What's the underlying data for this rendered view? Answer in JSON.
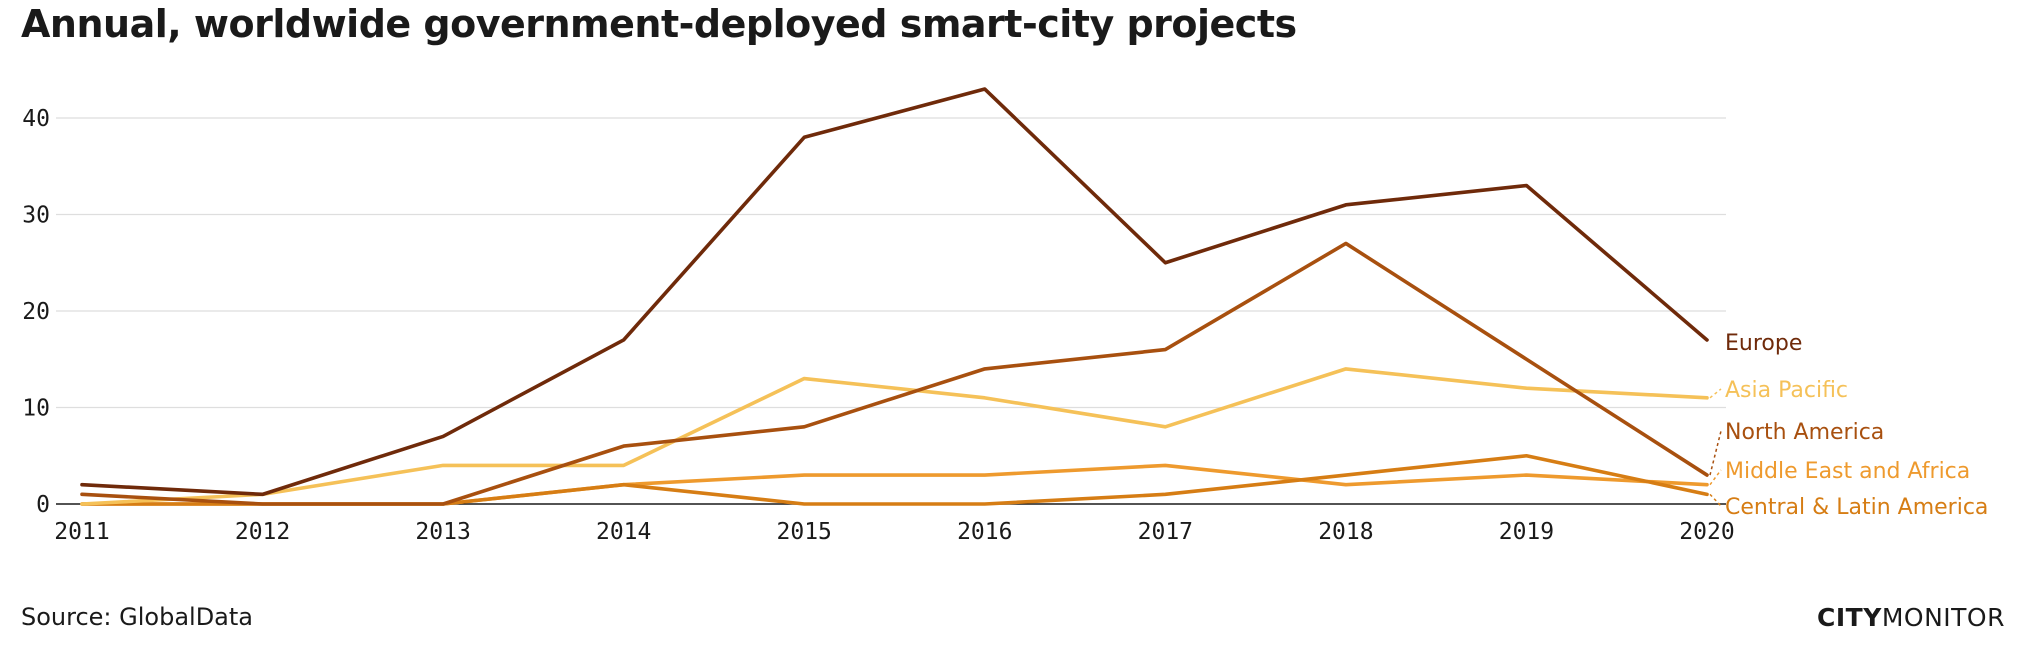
{
  "title": "Annual, worldwide government-deployed smart-city projects",
  "source": "Source: GlobalData",
  "brand": {
    "part1": "CITY",
    "part2": "MONITOR"
  },
  "chart_data": {
    "type": "line",
    "x": [
      2011,
      2012,
      2013,
      2014,
      2015,
      2016,
      2017,
      2018,
      2019,
      2020
    ],
    "x_tick_labels": [
      "2011",
      "2012",
      "2013",
      "2014",
      "2015",
      "2016",
      "2017",
      "2018",
      "2019",
      "2020"
    ],
    "y_ticks": [
      0,
      10,
      20,
      30,
      40
    ],
    "y_tick_labels": [
      "0",
      "10",
      "20",
      "30",
      "40"
    ],
    "ylim": [
      0,
      45
    ],
    "grid": true,
    "legend": "direct labels at line ends (right)",
    "series": [
      {
        "name": "Europe",
        "color": "#6f2a0a",
        "values": [
          2,
          1,
          7,
          17,
          38,
          43,
          25,
          31,
          33,
          17
        ]
      },
      {
        "name": "Asia Pacific",
        "color": "#f5c158",
        "values": [
          0,
          1,
          4,
          4,
          13,
          11,
          8,
          14,
          12,
          11
        ]
      },
      {
        "name": "North America",
        "color": "#a8500f",
        "values": [
          1,
          0,
          0,
          6,
          8,
          14,
          16,
          27,
          15,
          3
        ]
      },
      {
        "name": "Middle East and Africa",
        "color": "#ee9a2e",
        "values": [
          0,
          0,
          0,
          2,
          3,
          3,
          4,
          2,
          3,
          2
        ]
      },
      {
        "name": "Central & Latin America",
        "color": "#d67d14",
        "values": [
          0,
          0,
          0,
          2,
          0,
          0,
          1,
          3,
          5,
          1
        ]
      }
    ]
  }
}
